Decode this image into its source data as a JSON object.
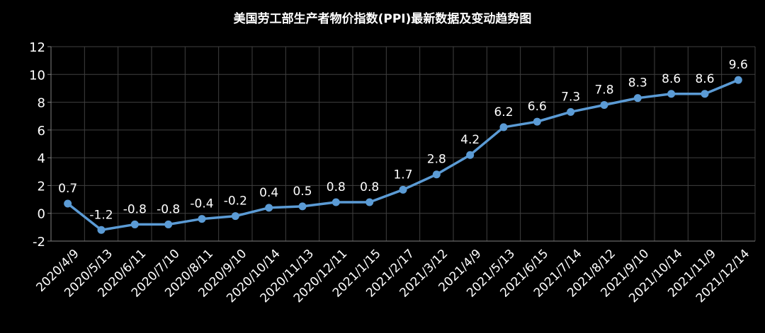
{
  "chart_data": {
    "type": "line",
    "title": "美国劳工部生产者物价指数(PPI)最新数据及变动趋势图",
    "xlabel": "",
    "ylabel": "",
    "categories": [
      "2020/4/9",
      "2020/5/13",
      "2020/6/11",
      "2020/7/10",
      "2020/8/11",
      "2020/9/10",
      "2020/10/14",
      "2020/11/13",
      "2020/12/11",
      "2021/1/15",
      "2021/2/17",
      "2021/3/12",
      "2021/4/9",
      "2021/5/13",
      "2021/6/15",
      "2021/7/14",
      "2021/8/12",
      "2021/9/10",
      "2021/10/14",
      "2021/11/9",
      "2021/12/14"
    ],
    "series": [
      {
        "values": [
          0.7,
          -1.2,
          -0.8,
          -0.8,
          -0.4,
          -0.2,
          0.4,
          0.5,
          0.8,
          0.8,
          1.7,
          2.8,
          4.2,
          6.2,
          6.6,
          7.3,
          7.8,
          8.3,
          8.6,
          8.6,
          9.6
        ],
        "labels": [
          "0.7",
          "-1.2",
          "-0.8",
          "-0.8",
          "-0.4",
          "-0.2",
          "0.4",
          "0.5",
          "0.8",
          "0.8",
          "1.7",
          "2.8",
          "4.2",
          "6.2",
          "6.6",
          "7.3",
          "7.8",
          "8.3",
          "8.6",
          "8.6",
          "9.6"
        ]
      }
    ],
    "ylim": [
      -2,
      12
    ],
    "yticks": [
      -2,
      0,
      2,
      4,
      6,
      8,
      10,
      12
    ],
    "grid": true,
    "legend": "none",
    "colors": {
      "background": "#000000",
      "line": "#5b9bd5",
      "text": "#ffffff",
      "grid": "#404040",
      "axis": "#808080"
    }
  }
}
